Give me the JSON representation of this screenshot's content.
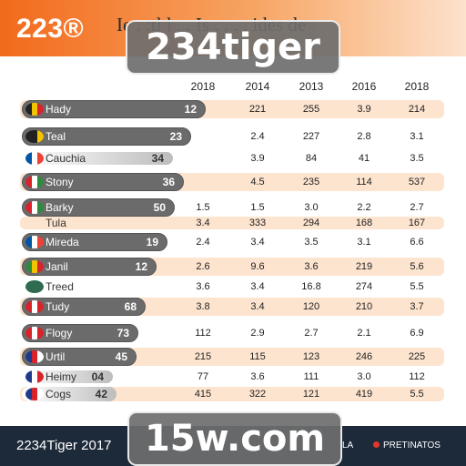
{
  "header": {
    "logo": "223®",
    "title": "Ie . :tl  l . .  Is . . . .  ides de"
  },
  "watermarks": {
    "top": "234tiger",
    "bottom": "15w.com"
  },
  "columns": [
    "2018",
    "2014",
    "2013",
    "2016",
    "2018"
  ],
  "rows": [
    {
      "team": "Hady",
      "pill": "12",
      "values": [
        "",
        "221",
        "255",
        "3.9",
        "214"
      ],
      "flag": [
        "#222222",
        "#f2c400",
        "#d8232a"
      ],
      "band": "#fde4cf",
      "style": "dark"
    },
    {
      "team": "Teal",
      "pill": "23",
      "values": [
        "",
        "2.4",
        "227",
        "2.8",
        "3.1"
      ],
      "flag": [
        "#222222",
        "#222222",
        "#f2c400"
      ],
      "band": "#ffffff",
      "style": "dark"
    },
    {
      "team": "Cauchia",
      "pill": "34",
      "values": [
        "",
        "3.9",
        "84",
        "41",
        "3.5"
      ],
      "flag": [
        "#0055a4",
        "#ffffff",
        "#ef4135"
      ],
      "band": "#ffffff",
      "style": "light"
    },
    {
      "team": "Stony",
      "pill": "36",
      "values": [
        "",
        "4.5",
        "235",
        "114",
        "537"
      ],
      "flag": [
        "#d8232a",
        "#ffffff",
        "#2e8b3d"
      ],
      "band": "#fde4cf",
      "style": "dark"
    },
    {
      "team": "Barky",
      "pill": "50",
      "values": [
        "1.5",
        "1.5",
        "3.0",
        "2.2",
        "2.7"
      ],
      "flag": [
        "#d8232a",
        "#ffffff",
        "#2e8b3d"
      ],
      "band": "#ffffff",
      "style": "dark"
    },
    {
      "team": "Tula",
      "pill": "",
      "values": [
        "3.4",
        "333",
        "294",
        "168",
        "167"
      ],
      "flag": [],
      "band": "#fde4cf",
      "style": "plain"
    },
    {
      "team": "Mireda",
      "pill": "19",
      "values": [
        "2.4",
        "3.4",
        "3.5",
        "3.1",
        "6.6"
      ],
      "flag": [
        "#0055a4",
        "#ffffff",
        "#ef4135"
      ],
      "band": "#ffffff",
      "style": "dark"
    },
    {
      "team": "Janil",
      "pill": "12",
      "values": [
        "2.6",
        "9.6",
        "3.6",
        "219",
        "5.6"
      ],
      "flag": [
        "#2e8b3d",
        "#f2c400",
        "#d8232a"
      ],
      "band": "#fde4cf",
      "style": "dark"
    },
    {
      "team": "Treed",
      "pill": "",
      "values": [
        "3.6",
        "3.4",
        "16.8",
        "274",
        "5.5"
      ],
      "flag": [
        "#2e6b4f"
      ],
      "band": "#ffffff",
      "style": "plain"
    },
    {
      "team": "Tudy",
      "pill": "68",
      "values": [
        "3.8",
        "3.4",
        "120",
        "210",
        "3.7"
      ],
      "flag": [
        "#d8232a",
        "#ffffff",
        "#d8232a"
      ],
      "band": "#fde4cf",
      "style": "dark"
    },
    {
      "team": "Flogy",
      "pill": "73",
      "values": [
        "112",
        "2.9",
        "2.7",
        "2.1",
        "6.9"
      ],
      "flag": [
        "#d8232a",
        "#ffffff",
        "#d8232a"
      ],
      "band": "#ffffff",
      "style": "dark"
    },
    {
      "team": "Urtil",
      "pill": "45",
      "values": [
        "215",
        "115",
        "123",
        "246",
        "225"
      ],
      "flag": [
        "#1f3a8a",
        "#d8232a",
        "#ffffff"
      ],
      "band": "#fde4cf",
      "style": "dark"
    },
    {
      "team": "Heimy",
      "pill": "04",
      "values": [
        "77",
        "3.6",
        "111",
        "3.0",
        "112"
      ],
      "flag": [
        "#1f3a8a",
        "#ffffff",
        "#d8232a"
      ],
      "band": "#ffffff",
      "style": "light"
    },
    {
      "team": "Cogs",
      "pill": "42",
      "values": [
        "415",
        "322",
        "121",
        "419",
        "5.5"
      ],
      "flag": [
        "#1f3a8a",
        "#d8232a",
        "#ffffff"
      ],
      "band": "#fde4cf",
      "style": "light"
    }
  ],
  "footer": {
    "left": "2234Tiger 2017",
    "mid": "LA",
    "right": "PRETINATOS"
  }
}
